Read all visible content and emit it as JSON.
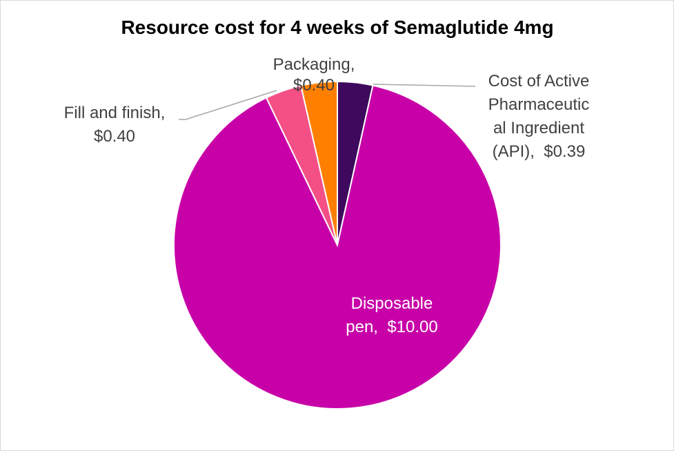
{
  "chart_data": {
    "type": "pie",
    "title": "Resource cost for 4 weeks of Semaglutide 4mg",
    "slices": [
      {
        "key": "api",
        "label_lines": [
          "Cost of Active",
          "Pharmaceutic",
          "al Ingredient",
          "(API),  $0.39"
        ],
        "name": "Cost of Active Pharmaceutical Ingredient (API)",
        "value": 0.39,
        "display": "$0.39",
        "color": "#3f0a5e"
      },
      {
        "key": "pen",
        "label_lines": [
          "Disposable",
          "pen,  $10.00"
        ],
        "name": "Disposable pen",
        "value": 10.0,
        "display": "$10.00",
        "color": "#c800a8"
      },
      {
        "key": "fill",
        "label_lines": [
          "Fill and finish,",
          "$0.40"
        ],
        "name": "Fill and finish",
        "value": 0.4,
        "display": "$0.40",
        "color": "#f45086"
      },
      {
        "key": "pack",
        "label_lines": [
          "Packaging,",
          "$0.40"
        ],
        "name": "Packaging",
        "value": 0.4,
        "display": "$0.40",
        "color": "#ff8000"
      }
    ],
    "legend": "none",
    "data_labels": "category name and value"
  }
}
